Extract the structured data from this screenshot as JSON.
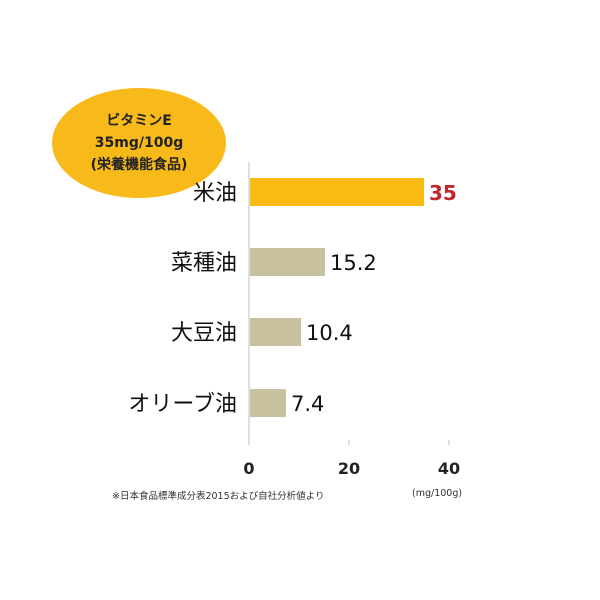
{
  "badge": {
    "line1": "ビタミンE",
    "line2": "35mg/100g",
    "line3": "(栄養機能食品)"
  },
  "footnote": "※日本食品標準成分表2015および自社分析値より",
  "unit": "(mg/100g)",
  "colors": {
    "highlight_bar": "#fbb913",
    "default_bar": "#c8c1a0",
    "highlight_label": "#c0262d",
    "axis": "#bfbfbf"
  },
  "chart_data": {
    "type": "bar",
    "orientation": "horizontal",
    "categories": [
      "米油",
      "菜種油",
      "大豆油",
      "オリーブ油"
    ],
    "values": [
      35,
      15.2,
      10.4,
      7.4
    ],
    "value_labels": [
      "35",
      "15.2",
      "10.4",
      "7.4"
    ],
    "highlight_index": 0,
    "xlim": [
      0,
      40
    ],
    "xticks": [
      0,
      20,
      40
    ],
    "xtick_labels": [
      "0",
      "20",
      "40"
    ],
    "grid": false,
    "title": "",
    "xlabel": "",
    "ylabel": ""
  }
}
